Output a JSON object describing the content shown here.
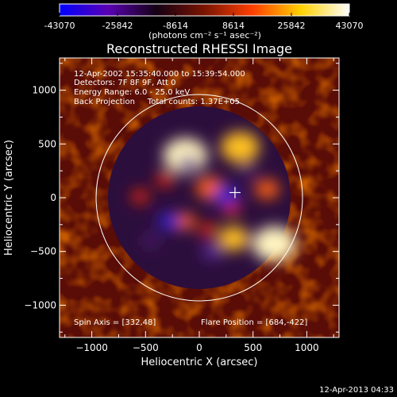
{
  "colorbar": {
    "ticks": [
      "-43070",
      "-25842",
      "-8614",
      "8614",
      "25842",
      "43070"
    ],
    "tick_values": [
      -43070,
      -25842,
      -8614,
      8614,
      25842,
      43070
    ],
    "range": [
      -43070,
      43070
    ],
    "colors": [
      "#0000ff",
      "#5a00b4",
      "#140014",
      "#7a1400",
      "#ff4000",
      "#ffd200",
      "#ffffff"
    ]
  },
  "unit_label": "(photons cm⁻² s⁻¹ asec⁻²)",
  "chart_data": {
    "type": "heatmap",
    "title": "Reconstructed RHESSI Image",
    "xlabel": "Heliocentric X (arcsec)",
    "ylabel": "Heliocentric Y (arcsec)",
    "xlim": [
      -1300,
      1300
    ],
    "ylim": [
      -1300,
      1300
    ],
    "xticks": [
      -1000,
      -500,
      0,
      500,
      1000
    ],
    "yticks": [
      -1000,
      -500,
      0,
      500,
      1000
    ],
    "xtick_labels": [
      "−1000",
      "−500",
      "0",
      "500",
      "1000"
    ],
    "ytick_labels": [
      "−1000",
      "−500",
      "0",
      "500",
      "1000"
    ],
    "info_lines": [
      "12-Apr-2002 15:35:40.000 to 15:39:54.000",
      "Detectors: 7F 8F 9F, Att 0",
      "Energy Range: 6.0 - 25.0 keV",
      "Back Projection     Total counts: 1.37E+05"
    ],
    "spin_axis": "Spin Axis = [332,48]",
    "flare_position": "Flare Position = [684,-422]",
    "spin_axis_point": [
      332,
      48
    ],
    "flare_point": [
      684,
      -422
    ],
    "solar_limb_radius": 960,
    "sources": [
      {
        "x": -130,
        "y": 390,
        "value": 43070
      },
      {
        "x": 380,
        "y": 470,
        "value": 38000
      },
      {
        "x": 700,
        "y": -430,
        "value": 43070
      },
      {
        "x": 320,
        "y": -380,
        "value": 30000
      },
      {
        "x": 100,
        "y": 90,
        "value": 28000
      },
      {
        "x": 630,
        "y": 80,
        "value": 24000
      },
      {
        "x": -320,
        "y": 170,
        "value": 18000
      },
      {
        "x": -130,
        "y": -220,
        "value": 20000
      },
      {
        "x": 80,
        "y": -300,
        "value": 16000
      },
      {
        "x": -550,
        "y": 10,
        "value": 14000
      },
      {
        "x": 300,
        "y": -100,
        "value": 14000
      },
      {
        "x": -100,
        "y": 320,
        "value": -18000
      },
      {
        "x": 250,
        "y": 20,
        "value": -26000
      },
      {
        "x": -280,
        "y": -220,
        "value": -22000
      },
      {
        "x": 120,
        "y": -500,
        "value": -20000
      },
      {
        "x": -450,
        "y": -400,
        "value": -14000
      },
      {
        "x": 450,
        "y": 250,
        "value": -14000
      }
    ]
  },
  "footer_timestamp": "12-Apr-2013 04:33"
}
